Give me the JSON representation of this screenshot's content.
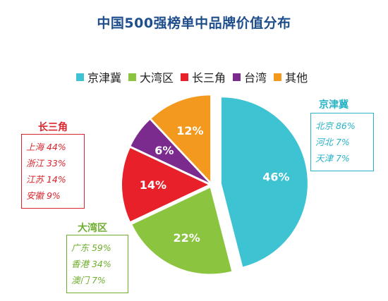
{
  "chart_data": {
    "type": "pie",
    "title": "中国500强榜单中品牌价值分布",
    "legend_position": "top",
    "slices": [
      {
        "label": "京津冀",
        "value": 46,
        "color": "#3ec3d3",
        "text": "46%"
      },
      {
        "label": "大湾区",
        "value": 22,
        "color": "#8bc43f",
        "text": "22%"
      },
      {
        "label": "长三角",
        "value": 14,
        "color": "#e8202a",
        "text": "14%"
      },
      {
        "label": "台湾",
        "value": 6,
        "color": "#7b2b8e",
        "text": "6%"
      },
      {
        "label": "其他",
        "value": 12,
        "color": "#f39a1e",
        "text": "12%"
      }
    ],
    "breakdowns": [
      {
        "region": "京津冀",
        "items": [
          "北京 86%",
          "河北 7%",
          "天津 7%"
        ],
        "color": "#2bb3c6"
      },
      {
        "region": "长三角",
        "items": [
          "上海 44%",
          "浙江 33%",
          "江苏 14%",
          "安徽 9%"
        ],
        "color": "#d9262e"
      },
      {
        "region": "大湾区",
        "items": [
          "广东 59%",
          "香港 34%",
          "澳门 7%"
        ],
        "color": "#6fae2e"
      }
    ]
  }
}
